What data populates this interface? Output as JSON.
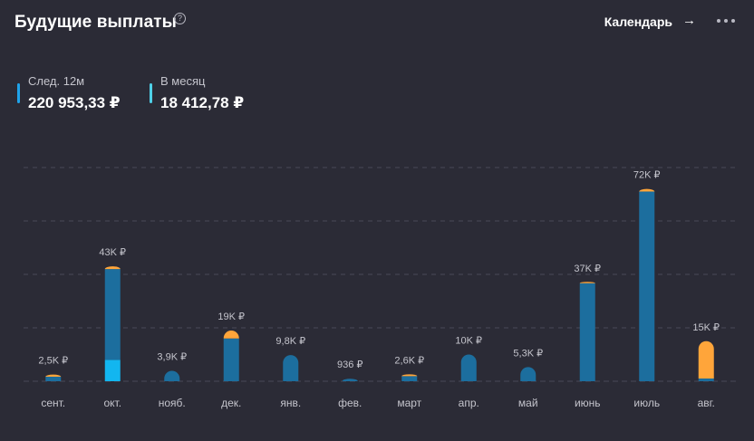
{
  "header": {
    "title": "Будущие выплаты",
    "help_icon": "question-circle-icon",
    "help_glyph": "?",
    "calendar_label": "Календарь",
    "calendar_icon": "arrow-right-icon",
    "calendar_glyph": "→",
    "more_icon": "more-horizontal-icon"
  },
  "stats": [
    {
      "label": "След. 12м",
      "value": "220 953,33 ₽",
      "color": "#1fa3ea"
    },
    {
      "label": "В месяц",
      "value": "18 412,78 ₽",
      "color": "#4fd0e8"
    }
  ],
  "colors": {
    "background": "#2b2b36",
    "bar_main": "#1c6e9e",
    "bar_light": "#12b6f0",
    "bar_accent": "#ffa53a",
    "gridline": "#4a4a58",
    "text_muted": "#c4c4cc"
  },
  "chart_data": {
    "type": "bar",
    "stacked": true,
    "categories": [
      "сент.",
      "окт.",
      "нояб.",
      "дек.",
      "янв.",
      "фев.",
      "март",
      "апр.",
      "май",
      "июнь",
      "июль",
      "авг."
    ],
    "series": [
      {
        "color": "#12b6f0",
        "values": [
          0,
          8000,
          0,
          0,
          0,
          0,
          0,
          0,
          0,
          0,
          0,
          0
        ]
      },
      {
        "color": "#1c6e9e",
        "values": [
          1700,
          34000,
          3900,
          16000,
          9800,
          936,
          1900,
          10000,
          5300,
          36700,
          71000,
          1000
        ]
      },
      {
        "color": "#ffa53a",
        "values": [
          800,
          1000,
          0,
          3000,
          0,
          0,
          700,
          0,
          0,
          300,
          1000,
          14000
        ]
      }
    ],
    "total_labels": [
      "2,5K ₽",
      "43K ₽",
      "3,9K ₽",
      "19K ₽",
      "9,8K ₽",
      "936 ₽",
      "2,6K ₽",
      "10K ₽",
      "5,3K ₽",
      "37K ₽",
      "72K ₽",
      "15K ₽"
    ],
    "ylim": [
      0,
      80000
    ],
    "grid": true
  }
}
